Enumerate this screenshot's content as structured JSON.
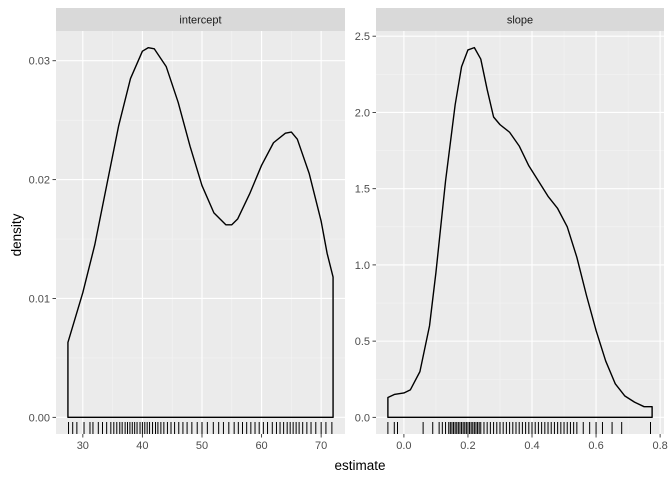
{
  "chart_data": {
    "type": "line",
    "subtype": "faceted density with rug",
    "xlabel": "estimate",
    "ylabel": "density",
    "facets": [
      {
        "name": "intercept",
        "xlim": [
          27.5,
          72.0
        ],
        "ylim": [
          0,
          0.0311
        ],
        "x_ticks": [
          30,
          40,
          50,
          60,
          70
        ],
        "y_ticks": [
          0.0,
          0.01,
          0.02,
          0.03
        ],
        "x_tick_labels": [
          "30",
          "40",
          "50",
          "60",
          "70"
        ],
        "y_tick_labels": [
          "0.00",
          "0.01",
          "0.02",
          "0.03"
        ],
        "density": {
          "x": [
            27.5,
            30,
            32,
            34,
            36,
            38,
            40,
            41,
            42,
            44,
            46,
            48,
            50,
            52,
            54,
            55,
            56,
            58,
            60,
            62,
            64,
            65,
            66,
            68,
            70,
            71,
            72
          ],
          "y": [
            0.0063,
            0.0105,
            0.0145,
            0.0195,
            0.0245,
            0.0285,
            0.0308,
            0.0311,
            0.031,
            0.0295,
            0.0265,
            0.0228,
            0.0195,
            0.0172,
            0.0162,
            0.0162,
            0.0167,
            0.0188,
            0.0212,
            0.0231,
            0.0239,
            0.024,
            0.0234,
            0.0205,
            0.0165,
            0.0138,
            0.0118
          ]
        },
        "rug": [
          27.6,
          28.3,
          29.0,
          30.2,
          31.2,
          31.7,
          32.6,
          33.3,
          34.0,
          34.7,
          35.2,
          35.7,
          36.2,
          36.6,
          37.1,
          37.5,
          37.9,
          38.3,
          38.7,
          39.1,
          39.6,
          40.0,
          40.4,
          40.8,
          41.2,
          41.7,
          42.2,
          42.6,
          43.1,
          43.6,
          44.2,
          44.8,
          45.4,
          46.1,
          46.8,
          47.5,
          48.3,
          49.2,
          50.0,
          50.9,
          51.9,
          52.8,
          53.6,
          54.5,
          55.4,
          56.1,
          56.8,
          57.5,
          58.2,
          58.9,
          59.6,
          60.3,
          61.0,
          61.8,
          62.5,
          63.1,
          63.7,
          64.3,
          64.8,
          65.3,
          65.8,
          66.3,
          66.9,
          67.6,
          68.3,
          69.1,
          70.0,
          70.8,
          71.8
        ]
      },
      {
        "name": "slope",
        "xlim": [
          -0.05,
          0.775
        ],
        "ylim": [
          0,
          2.425
        ],
        "x_ticks": [
          0.0,
          0.2,
          0.4,
          0.6,
          0.8
        ],
        "y_ticks": [
          0.0,
          0.5,
          1.0,
          1.5,
          2.0,
          2.5
        ],
        "x_tick_labels": [
          "0.0",
          "0.2",
          "0.4",
          "0.6",
          "0.8"
        ],
        "y_tick_labels": [
          "0.0",
          "0.5",
          "1.0",
          "1.5",
          "2.0",
          "2.5"
        ],
        "density": {
          "x": [
            -0.05,
            -0.03,
            0.0,
            0.02,
            0.05,
            0.08,
            0.1,
            0.13,
            0.16,
            0.18,
            0.2,
            0.22,
            0.24,
            0.26,
            0.28,
            0.3,
            0.33,
            0.36,
            0.39,
            0.42,
            0.45,
            0.48,
            0.51,
            0.54,
            0.57,
            0.6,
            0.63,
            0.66,
            0.69,
            0.72,
            0.75,
            0.775
          ],
          "y": [
            0.13,
            0.15,
            0.16,
            0.18,
            0.3,
            0.6,
            0.95,
            1.55,
            2.05,
            2.3,
            2.41,
            2.425,
            2.35,
            2.15,
            1.97,
            1.92,
            1.87,
            1.78,
            1.65,
            1.55,
            1.45,
            1.37,
            1.25,
            1.05,
            0.8,
            0.57,
            0.37,
            0.22,
            0.14,
            0.1,
            0.07,
            0.07
          ]
        },
        "rug": [
          -0.05,
          -0.03,
          -0.02,
          0.06,
          0.09,
          0.11,
          0.12,
          0.13,
          0.14,
          0.145,
          0.15,
          0.155,
          0.16,
          0.165,
          0.17,
          0.175,
          0.18,
          0.185,
          0.19,
          0.195,
          0.2,
          0.205,
          0.21,
          0.215,
          0.22,
          0.225,
          0.23,
          0.235,
          0.24,
          0.25,
          0.26,
          0.27,
          0.28,
          0.29,
          0.3,
          0.31,
          0.32,
          0.33,
          0.34,
          0.35,
          0.36,
          0.37,
          0.38,
          0.39,
          0.4,
          0.41,
          0.42,
          0.43,
          0.44,
          0.45,
          0.46,
          0.47,
          0.48,
          0.49,
          0.5,
          0.51,
          0.52,
          0.53,
          0.54,
          0.56,
          0.58,
          0.6,
          0.62,
          0.65,
          0.68,
          0.77
        ]
      }
    ]
  }
}
